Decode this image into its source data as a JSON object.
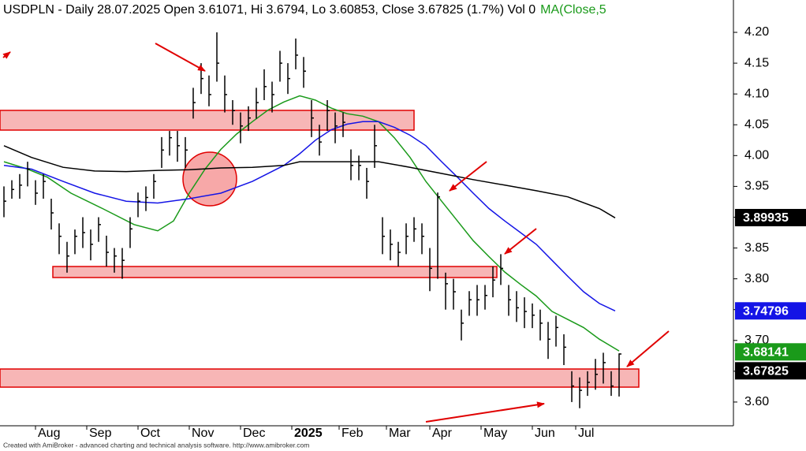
{
  "chart_data": {
    "type": "hlc",
    "title": "USDPLN - Daily 28.07.2025 Open 3.61071, Hi 3.6794, Lo 3.60853, Close 3.67825 (1.7%) Vol 0",
    "title_ma": "MA(Close,5",
    "footer": "Created with AmiBroker - advanced charting and technical analysis software. http://www.amibroker.com",
    "bar_color": "#000000",
    "high": [
      3.95,
      3.96,
      3.97,
      3.99,
      3.96,
      3.97,
      3.93,
      3.89,
      3.86,
      3.88,
      3.9,
      3.88,
      3.9,
      3.87,
      3.85,
      3.85,
      3.9,
      3.94,
      3.95,
      3.97,
      4.03,
      4.04,
      4.04,
      4.03,
      4.11,
      4.15,
      4.13,
      4.2,
      4.13,
      4.09,
      4.07,
      4.08,
      4.11,
      4.14,
      4.12,
      4.17,
      4.15,
      4.19,
      4.16,
      4.09,
      4.05,
      4.09,
      4.07,
      4.07,
      4.01,
      4.0,
      3.98,
      4.05,
      3.9,
      3.88,
      3.86,
      3.89,
      3.9,
      3.89,
      3.85,
      3.94,
      3.81,
      3.8,
      3.75,
      3.78,
      3.79,
      3.79,
      3.82,
      3.84,
      3.79,
      3.78,
      3.77,
      3.76,
      3.75,
      3.73,
      3.74,
      3.71,
      3.65,
      3.64,
      3.65,
      3.67,
      3.68,
      3.65,
      3.679
    ],
    "low": [
      3.9,
      3.93,
      3.93,
      3.95,
      3.92,
      3.93,
      3.88,
      3.84,
      3.81,
      3.84,
      3.85,
      3.83,
      3.86,
      3.82,
      3.81,
      3.8,
      3.85,
      3.9,
      3.91,
      3.93,
      3.98,
      4.0,
      3.99,
      3.98,
      4.06,
      4.1,
      4.08,
      4.12,
      4.07,
      4.05,
      4.02,
      4.04,
      4.06,
      4.09,
      4.07,
      4.12,
      4.1,
      4.14,
      4.11,
      4.03,
      4.0,
      4.04,
      4.02,
      4.03,
      3.96,
      3.96,
      3.93,
      3.98,
      3.84,
      3.83,
      3.82,
      3.84,
      3.86,
      3.84,
      3.78,
      3.8,
      3.75,
      3.75,
      3.7,
      3.74,
      3.74,
      3.75,
      3.77,
      3.79,
      3.74,
      3.73,
      3.72,
      3.72,
      3.7,
      3.67,
      3.69,
      3.66,
      3.6,
      3.59,
      3.61,
      3.62,
      3.63,
      3.61,
      3.609
    ],
    "close": [
      3.926,
      3.945,
      3.952,
      3.978,
      3.939,
      3.958,
      3.907,
      3.869,
      3.837,
      3.869,
      3.875,
      3.856,
      3.888,
      3.843,
      3.837,
      3.83,
      3.881,
      3.926,
      3.932,
      3.958,
      4.009,
      4.029,
      4.016,
      4.009,
      4.086,
      4.125,
      4.099,
      4.15,
      4.099,
      4.073,
      4.048,
      4.061,
      4.086,
      4.112,
      4.099,
      4.15,
      4.125,
      4.163,
      4.137,
      4.061,
      4.022,
      4.073,
      4.048,
      4.054,
      3.984,
      3.984,
      3.958,
      4.016,
      3.869,
      3.856,
      3.843,
      3.869,
      3.881,
      3.869,
      3.817,
      3.933,
      3.792,
      3.779,
      3.728,
      3.766,
      3.766,
      3.773,
      3.798,
      3.817,
      3.766,
      3.753,
      3.747,
      3.741,
      3.728,
      3.702,
      3.721,
      3.689,
      3.626,
      3.619,
      3.632,
      3.645,
      3.664,
      3.626,
      3.678
    ],
    "series": [
      {
        "color": "#1a9a1a",
        "x": [
          0,
          3,
          5.5,
          8.5,
          12.5,
          16.5,
          19.5,
          21.5,
          23.5,
          25.5,
          27.5,
          29.5,
          31.5,
          33.5,
          35.5,
          37.5,
          39.5,
          41.5,
          43.5,
          45.5,
          47.5,
          49.5,
          51.5,
          53.5,
          55.5,
          57.5,
          59.5,
          61.5,
          63.5,
          65.5,
          67.5,
          69.5,
          71.5,
          73.5,
          75.5,
          78
        ],
        "values": [
          3.99,
          3.978,
          3.965,
          3.939,
          3.914,
          3.888,
          3.878,
          3.894,
          3.939,
          3.978,
          4.01,
          4.035,
          4.055,
          4.074,
          4.087,
          4.097,
          4.09,
          4.077,
          4.068,
          4.064,
          4.055,
          4.029,
          3.997,
          3.958,
          3.926,
          3.894,
          3.862,
          3.836,
          3.811,
          3.791,
          3.772,
          3.747,
          3.734,
          3.721,
          3.702,
          3.683
        ]
      },
      {
        "color": "#1414e6",
        "x": [
          0,
          3.5,
          7.5,
          11.5,
          15.5,
          19.5,
          23.5,
          27.5,
          31.5,
          35.5,
          37.5,
          39.5,
          41.5,
          43.5,
          45.5,
          47.5,
          49.5,
          51.5,
          53.5,
          55.5,
          57.5,
          59.5,
          61.5,
          63.5,
          65.5,
          67.5,
          69.5,
          71.5,
          73.5,
          75.5,
          77.5
        ],
        "values": [
          3.984,
          3.978,
          3.958,
          3.939,
          3.926,
          3.923,
          3.93,
          3.939,
          3.958,
          3.984,
          4.003,
          4.025,
          4.042,
          4.051,
          4.055,
          4.055,
          4.046,
          4.033,
          4.016,
          3.99,
          3.965,
          3.939,
          3.914,
          3.894,
          3.875,
          3.856,
          3.83,
          3.804,
          3.779,
          3.76,
          3.748
        ]
      },
      {
        "color": "#000000",
        "x": [
          0,
          3.5,
          7.5,
          11.5,
          15.5,
          19.5,
          23.5,
          27.5,
          31.5,
          35.5,
          37.5,
          39.5,
          43.5,
          47.5,
          51.5,
          55.5,
          59.5,
          63.5,
          67.5,
          71.5,
          75.5,
          77.5
        ],
        "values": [
          4.016,
          3.997,
          3.981,
          3.975,
          3.974,
          3.976,
          3.977,
          3.98,
          3.981,
          3.984,
          3.99,
          3.99,
          3.99,
          3.99,
          3.981,
          3.971,
          3.961,
          3.952,
          3.943,
          3.933,
          3.914,
          3.899
        ]
      }
    ],
    "price_labels": [
      {
        "value": 3.89935,
        "color": "#000000"
      },
      {
        "value": 3.74796,
        "color": "#1414e6"
      },
      {
        "value": 3.68141,
        "color": "#1a9a1a"
      },
      {
        "value": 3.67825,
        "color": "#000000"
      }
    ],
    "xlim": [
      -0.5,
      92.5
    ],
    "xticks": [
      {
        "value": 4,
        "label": "Aug"
      },
      {
        "value": 10.5,
        "label": "Sep"
      },
      {
        "value": 17,
        "label": "Oct"
      },
      {
        "value": 23.5,
        "label": "Nov"
      },
      {
        "value": 30,
        "label": "Dec"
      },
      {
        "value": 36.5,
        "label": "2025"
      },
      {
        "value": 42.5,
        "label": "Feb"
      },
      {
        "value": 48.5,
        "label": "Mar"
      },
      {
        "value": 54,
        "label": "Apr"
      },
      {
        "value": 60.5,
        "label": "May"
      },
      {
        "value": 67,
        "label": "Jun"
      },
      {
        "value": 72.5,
        "label": "Jul"
      }
    ],
    "ylim": [
      3.5615,
      4.2525
    ],
    "yticks": [
      {
        "value": 3.6,
        "label": "3.60"
      },
      3.65,
      {
        "value": 3.7,
        "label": "3.70"
      },
      3.75,
      {
        "value": 3.8,
        "label": "3.80"
      },
      3.85,
      {
        "value": 3.9,
        "label": "3.90"
      },
      3.95,
      {
        "value": 4.0,
        "label": "4.00"
      },
      4.05,
      {
        "value": 4.1,
        "label": "4.10"
      },
      4.15,
      {
        "value": 4.2,
        "label": "4.20"
      }
    ]
  }
}
